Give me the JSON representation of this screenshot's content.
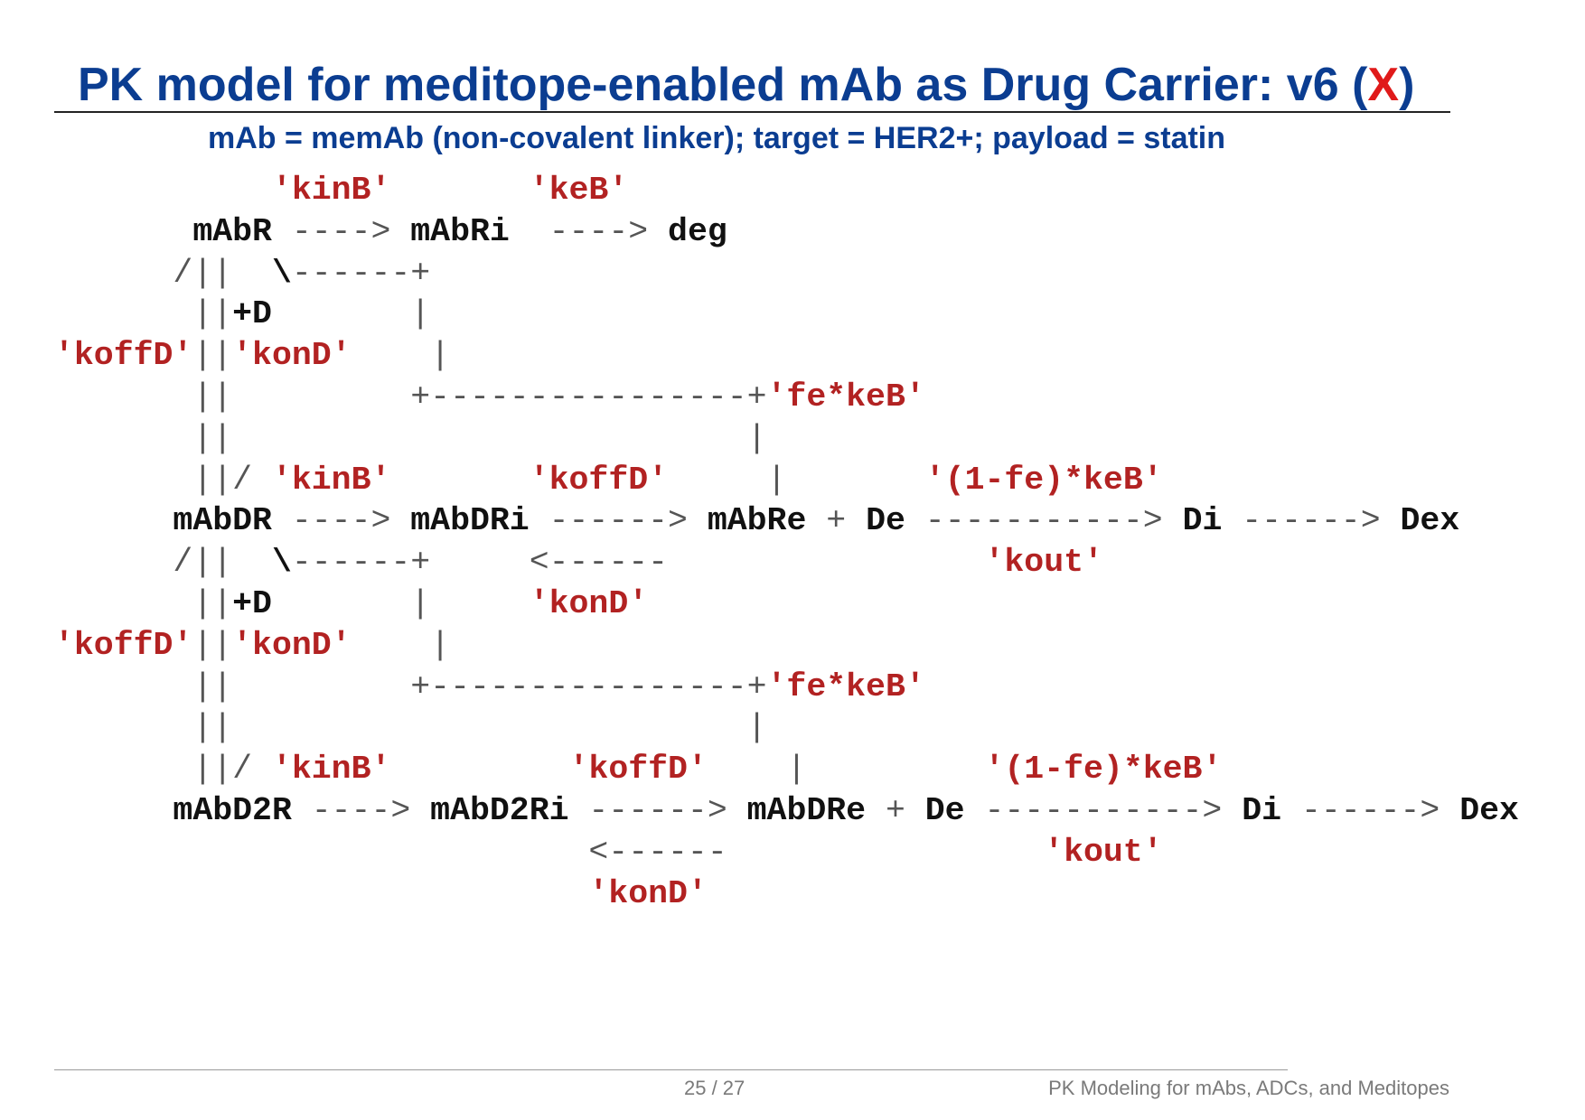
{
  "slide": {
    "title_main": "PK model for meditope-enabled mAb as Drug Carrier: v6 (",
    "title_mark": "X",
    "title_close": ")",
    "subtitle": "mAb = memAb (non-covalent linker); target = HER2+; payload = statin"
  },
  "colors": {
    "title": "#0b3d91",
    "mark": "#e01a1a",
    "rate": "#b22222",
    "species": "#111111",
    "operator": "#555555"
  },
  "diagram": {
    "lines": [
      [
        {
          "t": "rate",
          "s": "           'kinB'       'keB'"
        }
      ],
      [
        {
          "t": "op",
          "s": "       "
        },
        {
          "t": "species",
          "s": "mAbR"
        },
        {
          "t": "op",
          "s": " ----> "
        },
        {
          "t": "species",
          "s": "mAbRi"
        },
        {
          "t": "op",
          "s": "  ----> "
        },
        {
          "t": "species",
          "s": "deg"
        }
      ],
      [
        {
          "t": "op",
          "s": "      /||  "
        },
        {
          "t": "species",
          "s": "\\"
        },
        {
          "t": "op",
          "s": "------+"
        }
      ],
      [
        {
          "t": "op",
          "s": "       ||"
        },
        {
          "t": "species",
          "s": "+D"
        },
        {
          "t": "op",
          "s": "       |"
        }
      ],
      [
        {
          "t": "rate",
          "s": "'koffD'"
        },
        {
          "t": "op",
          "s": "||"
        },
        {
          "t": "rate",
          "s": "'konD'"
        },
        {
          "t": "op",
          "s": "    |"
        }
      ],
      [
        {
          "t": "op",
          "s": "       ||         +----------------+"
        },
        {
          "t": "rate",
          "s": "'fe*keB'"
        }
      ],
      [
        {
          "t": "op",
          "s": "       ||                          |"
        }
      ],
      [
        {
          "t": "op",
          "s": "       ||/ "
        },
        {
          "t": "rate",
          "s": "'kinB'"
        },
        {
          "t": "op",
          "s": "       "
        },
        {
          "t": "rate",
          "s": "'koffD'"
        },
        {
          "t": "op",
          "s": "     |       "
        },
        {
          "t": "rate",
          "s": "'(1-fe)*keB'"
        }
      ],
      [
        {
          "t": "op",
          "s": "      "
        },
        {
          "t": "species",
          "s": "mAbDR"
        },
        {
          "t": "op",
          "s": " ----> "
        },
        {
          "t": "species",
          "s": "mAbDRi"
        },
        {
          "t": "op",
          "s": " ------> "
        },
        {
          "t": "species",
          "s": "mAbRe"
        },
        {
          "t": "op",
          "s": " + "
        },
        {
          "t": "species",
          "s": "De"
        },
        {
          "t": "op",
          "s": " -----------> "
        },
        {
          "t": "species",
          "s": "Di"
        },
        {
          "t": "op",
          "s": " ------> "
        },
        {
          "t": "species",
          "s": "Dex"
        }
      ],
      [
        {
          "t": "op",
          "s": "      /||  "
        },
        {
          "t": "species",
          "s": "\\"
        },
        {
          "t": "op",
          "s": "------+     <------                "
        },
        {
          "t": "rate",
          "s": "'kout'"
        }
      ],
      [
        {
          "t": "op",
          "s": "       ||"
        },
        {
          "t": "species",
          "s": "+D"
        },
        {
          "t": "op",
          "s": "       |     "
        },
        {
          "t": "rate",
          "s": "'konD'"
        }
      ],
      [
        {
          "t": "rate",
          "s": "'koffD'"
        },
        {
          "t": "op",
          "s": "||"
        },
        {
          "t": "rate",
          "s": "'konD'"
        },
        {
          "t": "op",
          "s": "    |"
        }
      ],
      [
        {
          "t": "op",
          "s": "       ||         +----------------+"
        },
        {
          "t": "rate",
          "s": "'fe*keB'"
        }
      ],
      [
        {
          "t": "op",
          "s": "       ||                          |"
        }
      ],
      [
        {
          "t": "op",
          "s": "       ||/ "
        },
        {
          "t": "rate",
          "s": "'kinB'"
        },
        {
          "t": "op",
          "s": "         "
        },
        {
          "t": "rate",
          "s": "'koffD'"
        },
        {
          "t": "op",
          "s": "    |         "
        },
        {
          "t": "rate",
          "s": "'(1-fe)*keB'"
        }
      ],
      [
        {
          "t": "op",
          "s": "      "
        },
        {
          "t": "species",
          "s": "mAbD2R"
        },
        {
          "t": "op",
          "s": " ----> "
        },
        {
          "t": "species",
          "s": "mAbD2Ri"
        },
        {
          "t": "op",
          "s": " ------> "
        },
        {
          "t": "species",
          "s": "mAbDRe"
        },
        {
          "t": "op",
          "s": " + "
        },
        {
          "t": "species",
          "s": "De"
        },
        {
          "t": "op",
          "s": " -----------> "
        },
        {
          "t": "species",
          "s": "Di"
        },
        {
          "t": "op",
          "s": " ------> "
        },
        {
          "t": "species",
          "s": "Dex"
        }
      ],
      [
        {
          "t": "op",
          "s": "                           <------                "
        },
        {
          "t": "rate",
          "s": "'kout'"
        }
      ],
      [
        {
          "t": "op",
          "s": "                           "
        },
        {
          "t": "rate",
          "s": "'konD'"
        }
      ]
    ]
  },
  "footer": {
    "page": "25 / 27",
    "title": "PK Modeling for mAbs, ADCs, and Meditopes"
  }
}
